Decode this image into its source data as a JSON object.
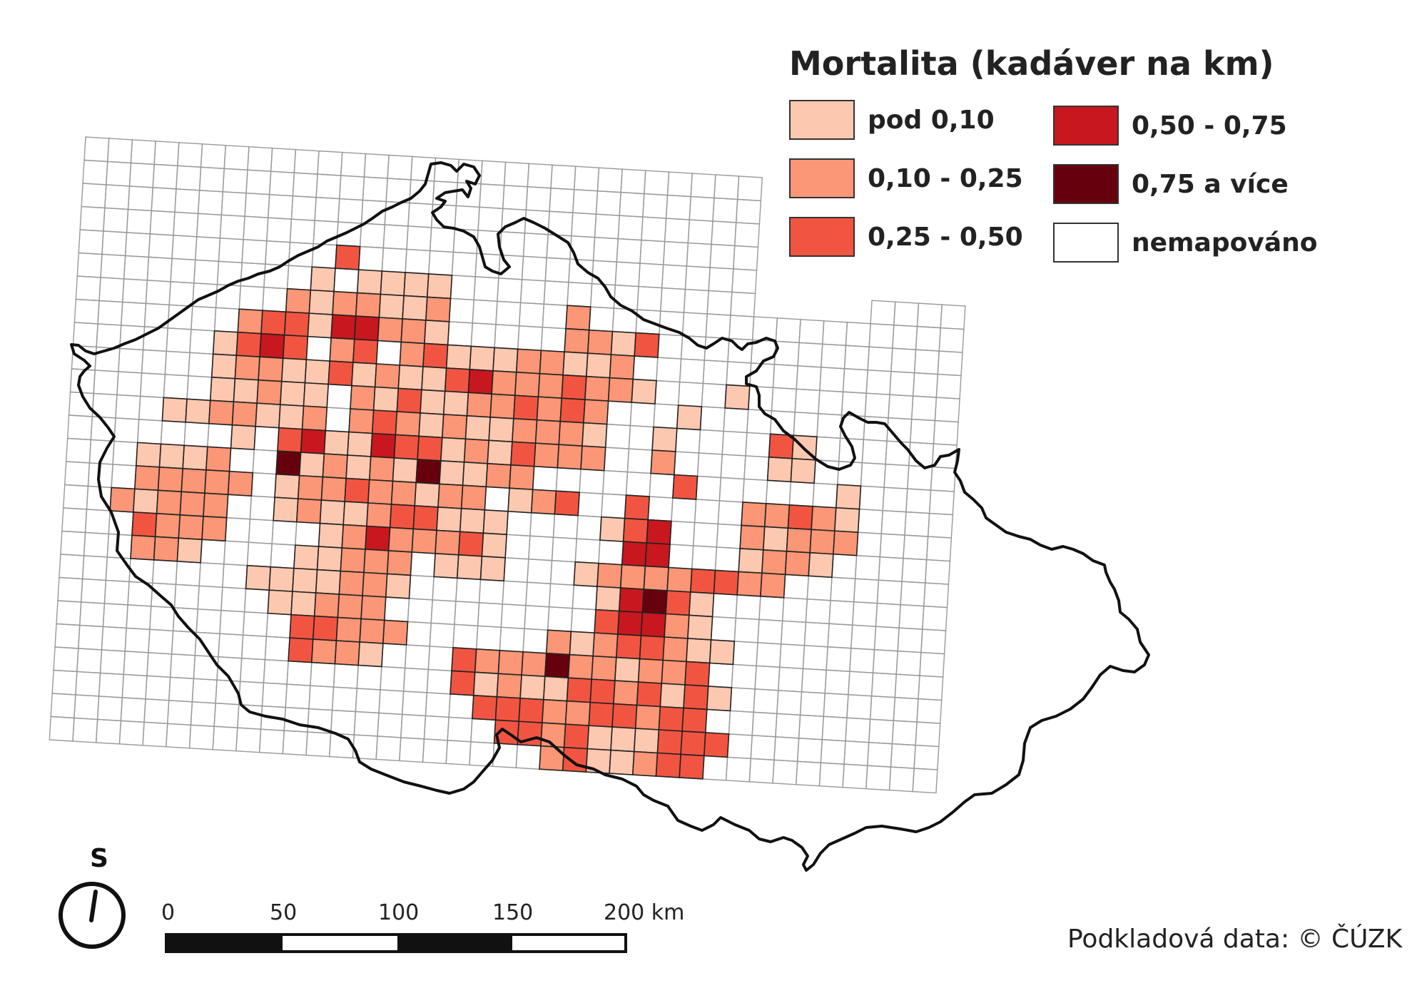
{
  "legend": {
    "title": "Mortalita (kadáver na km)",
    "items": [
      {
        "label": "pod 0,10",
        "color": "#fcc8b0"
      },
      {
        "label": "0,10 - 0,25",
        "color": "#fb9676"
      },
      {
        "label": "0,25 - 0,50",
        "color": "#f15541"
      },
      {
        "label": "0,50 - 0,75",
        "color": "#c8171e"
      },
      {
        "label": "0,75 a více",
        "color": "#67000d"
      },
      {
        "label": "nemapováno",
        "color": "#ffffff"
      }
    ]
  },
  "north_arrow": {
    "letter": "S"
  },
  "scale_bar": {
    "labels": [
      "0",
      "50",
      "100",
      "150",
      "200 km"
    ]
  },
  "attribution": "Podkladová data:  © ČÚZK",
  "colors": {
    "grid": "#9a9a9a",
    "border": "#111111",
    "cell_outline": "#222222"
  },
  "icons": [
    "north-arrow-icon"
  ]
}
